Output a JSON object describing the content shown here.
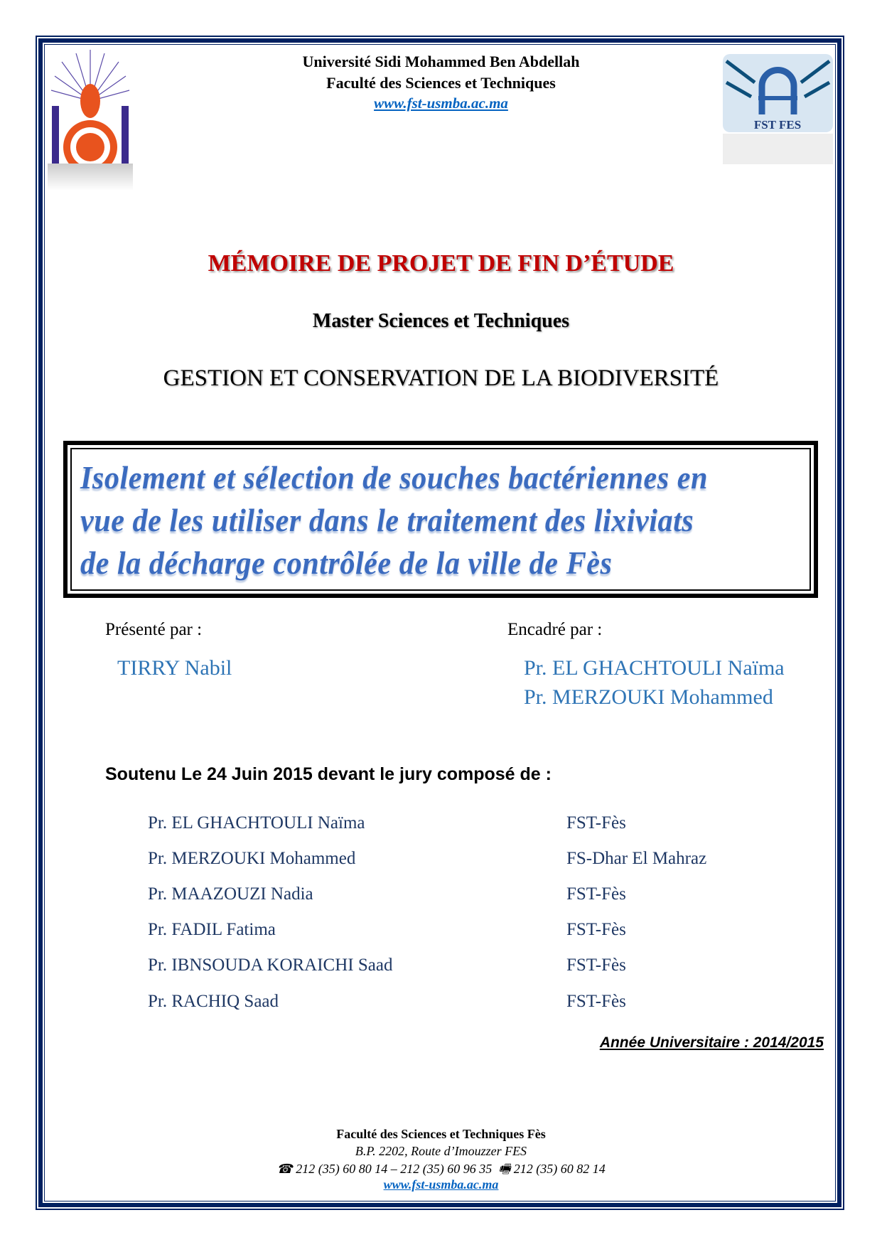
{
  "header": {
    "university": "Université Sidi Mohammed Ben Abdellah",
    "faculty": "Faculté des Sciences et Techniques",
    "website": "www.fst-usmba.ac.ma",
    "right_logo_text": "FST FES"
  },
  "document_type": "MÉMOIRE DE PROJET DE FIN D’ÉTUDE",
  "program": "Master Sciences et Techniques",
  "specialty": "GESTION ET CONSERVATION DE LA BIODIVERSITÉ",
  "title_lines": [
    "Isolement et sélection de souches bactériennes en",
    "vue de les utiliser dans le traitement des lixiviats",
    "de la décharge contrôlée de la ville de Fès"
  ],
  "presented": {
    "label": "Présenté par :",
    "name": "TIRRY Nabil"
  },
  "supervised": {
    "label": "Encadré par :",
    "names": [
      "Pr. EL GHACHTOULI Naïma",
      "Pr. MERZOUKI Mohammed"
    ]
  },
  "defense": "Soutenu Le 24 Juin 2015 devant le jury composé de :",
  "jury": [
    {
      "name": "Pr. EL GHACHTOULI Naïma",
      "institution": "FST-Fès"
    },
    {
      "name": "Pr. MERZOUKI Mohammed",
      "institution": "FS-Dhar El Mahraz"
    },
    {
      "name": "Pr. MAAZOUZI Nadia",
      "institution": "FST-Fès"
    },
    {
      "name": "Pr. FADIL Fatima",
      "institution": "FST-Fès"
    },
    {
      "name": "Pr. IBNSOUDA KORAICHI Saad",
      "institution": "FST-Fès"
    },
    {
      "name": "Pr. RACHIQ Saad",
      "institution": "FST-Fès"
    }
  ],
  "academic_year": "Année Universitaire : 2014/2015",
  "footer": {
    "faculty": "Faculté des Sciences et Techniques Fès",
    "address": "B.P. 2202, Route d’Imouzzer FES",
    "phone": "212 (35) 60 80 14 – 212 (35) 60 96 35",
    "fax": "212 (35) 60 82 14",
    "website": "www.fst-usmba.ac.ma",
    "phone_icon": "☎",
    "fax_icon": "🖷"
  },
  "colors": {
    "border": "#002060",
    "title_red": "#c00000",
    "link": "#0563c1",
    "title_blue": "#3b6bbf"
  }
}
